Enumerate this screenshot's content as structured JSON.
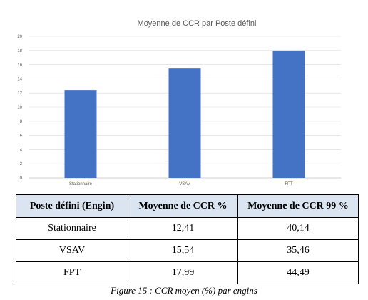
{
  "chart_data": {
    "type": "bar",
    "title": "Moyenne de CCR par Poste défini",
    "categories": [
      "Stationnaire",
      "VSAV",
      "FPT"
    ],
    "values": [
      12.41,
      15.54,
      17.99
    ],
    "ylim": [
      0,
      20
    ],
    "yticks": [
      0,
      2,
      4,
      6,
      8,
      10,
      12,
      14,
      16,
      18,
      20
    ],
    "grid": true,
    "bar_color": "#4472c4"
  },
  "table": {
    "headers": [
      "Poste défini (Engin)",
      "Moyenne de CCR %",
      "Moyenne de CCR 99 %"
    ],
    "rows": [
      [
        "Stationnaire",
        "12,41",
        "40,14"
      ],
      [
        "VSAV",
        "15,54",
        "35,46"
      ],
      [
        "FPT",
        "17,99",
        "44,49"
      ]
    ]
  },
  "caption": "Figure 15 : CCR moyen (%) par engins"
}
